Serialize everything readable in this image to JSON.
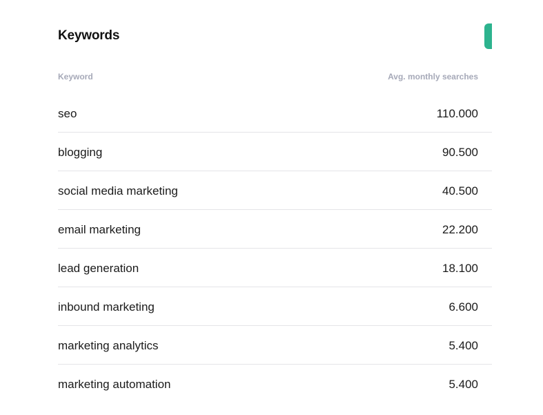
{
  "panel": {
    "title": "Keywords",
    "accent_color": "#2db38e"
  },
  "table": {
    "columns": {
      "keyword": "Keyword",
      "searches": "Avg. monthly searches"
    },
    "rows": [
      {
        "keyword": "seo",
        "searches": "110.000"
      },
      {
        "keyword": "blogging",
        "searches": "90.500"
      },
      {
        "keyword": "social media marketing",
        "searches": "40.500"
      },
      {
        "keyword": "email marketing",
        "searches": "22.200"
      },
      {
        "keyword": "lead generation",
        "searches": "18.100"
      },
      {
        "keyword": "inbound marketing",
        "searches": "6.600"
      },
      {
        "keyword": "marketing analytics",
        "searches": "5.400"
      },
      {
        "keyword": "marketing automation",
        "searches": "5.400"
      }
    ]
  }
}
